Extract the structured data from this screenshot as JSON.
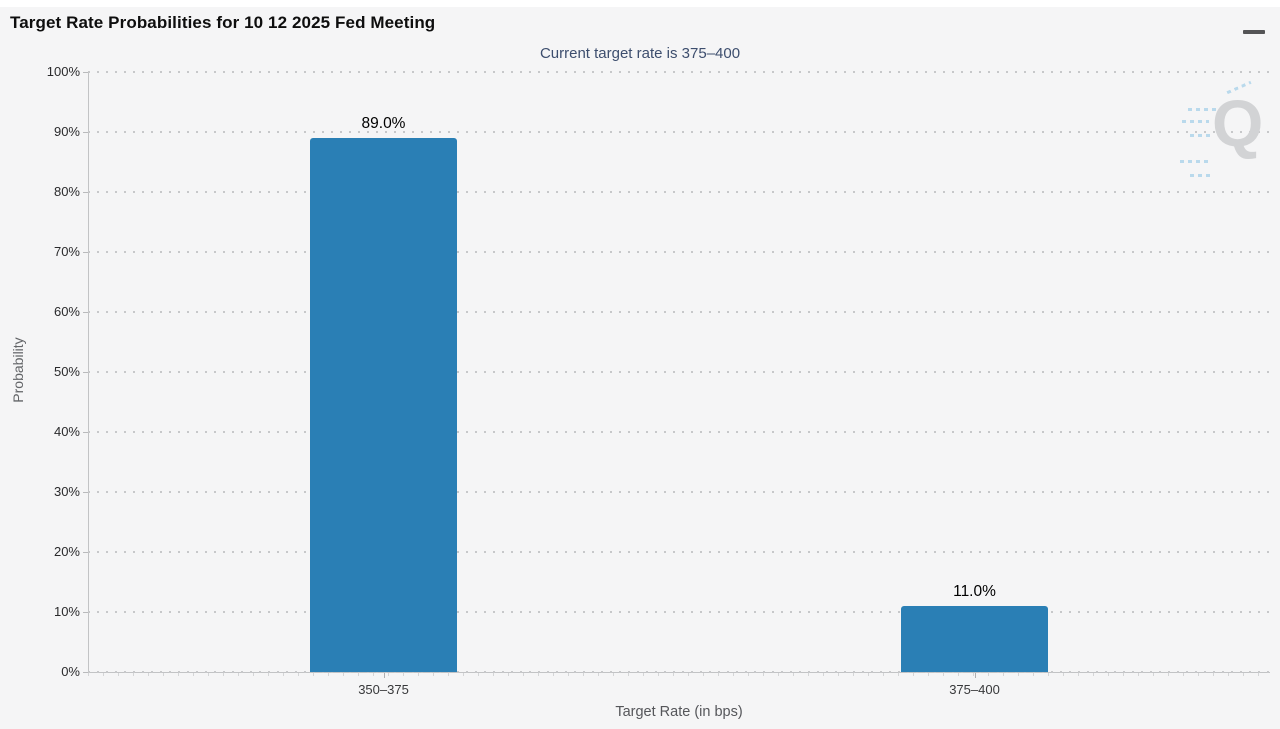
{
  "header": {
    "title": "Target Rate Probabilities for 10 12 2025 Fed Meeting",
    "menu_icon": "hamburger-icon"
  },
  "subtitle": "Current target rate is 375–400",
  "watermark": {
    "letter": "Q"
  },
  "colors": {
    "bar": "#2a7fb5",
    "subtitle_text": "#3d4e6e",
    "background": "#f5f5f6",
    "grid": "#c7c8ca",
    "value_label": "#000000"
  },
  "chart_data": {
    "type": "bar",
    "title": "Target Rate Probabilities for 10 12 2025 Fed Meeting",
    "subtitle": "Current target rate is 375–400",
    "categories": [
      "350–375",
      "375–400"
    ],
    "values": [
      89.0,
      11.0
    ],
    "value_labels": [
      "89.0%",
      "11.0%"
    ],
    "xlabel": "Target Rate (in bps)",
    "ylabel": "Probability",
    "ylim": [
      0,
      100
    ],
    "yticks": [
      {
        "value": 0,
        "label": "0%"
      },
      {
        "value": 10,
        "label": "10%"
      },
      {
        "value": 20,
        "label": "20%"
      },
      {
        "value": 30,
        "label": "30%"
      },
      {
        "value": 40,
        "label": "40%"
      },
      {
        "value": 50,
        "label": "50%"
      },
      {
        "value": 60,
        "label": "60%"
      },
      {
        "value": 70,
        "label": "70%"
      },
      {
        "value": 80,
        "label": "80%"
      },
      {
        "value": 90,
        "label": "90%"
      },
      {
        "value": 100,
        "label": "100%"
      }
    ],
    "grid": "dotted-horizontal",
    "legend": "none",
    "bar_color": "#2a7fb5"
  }
}
